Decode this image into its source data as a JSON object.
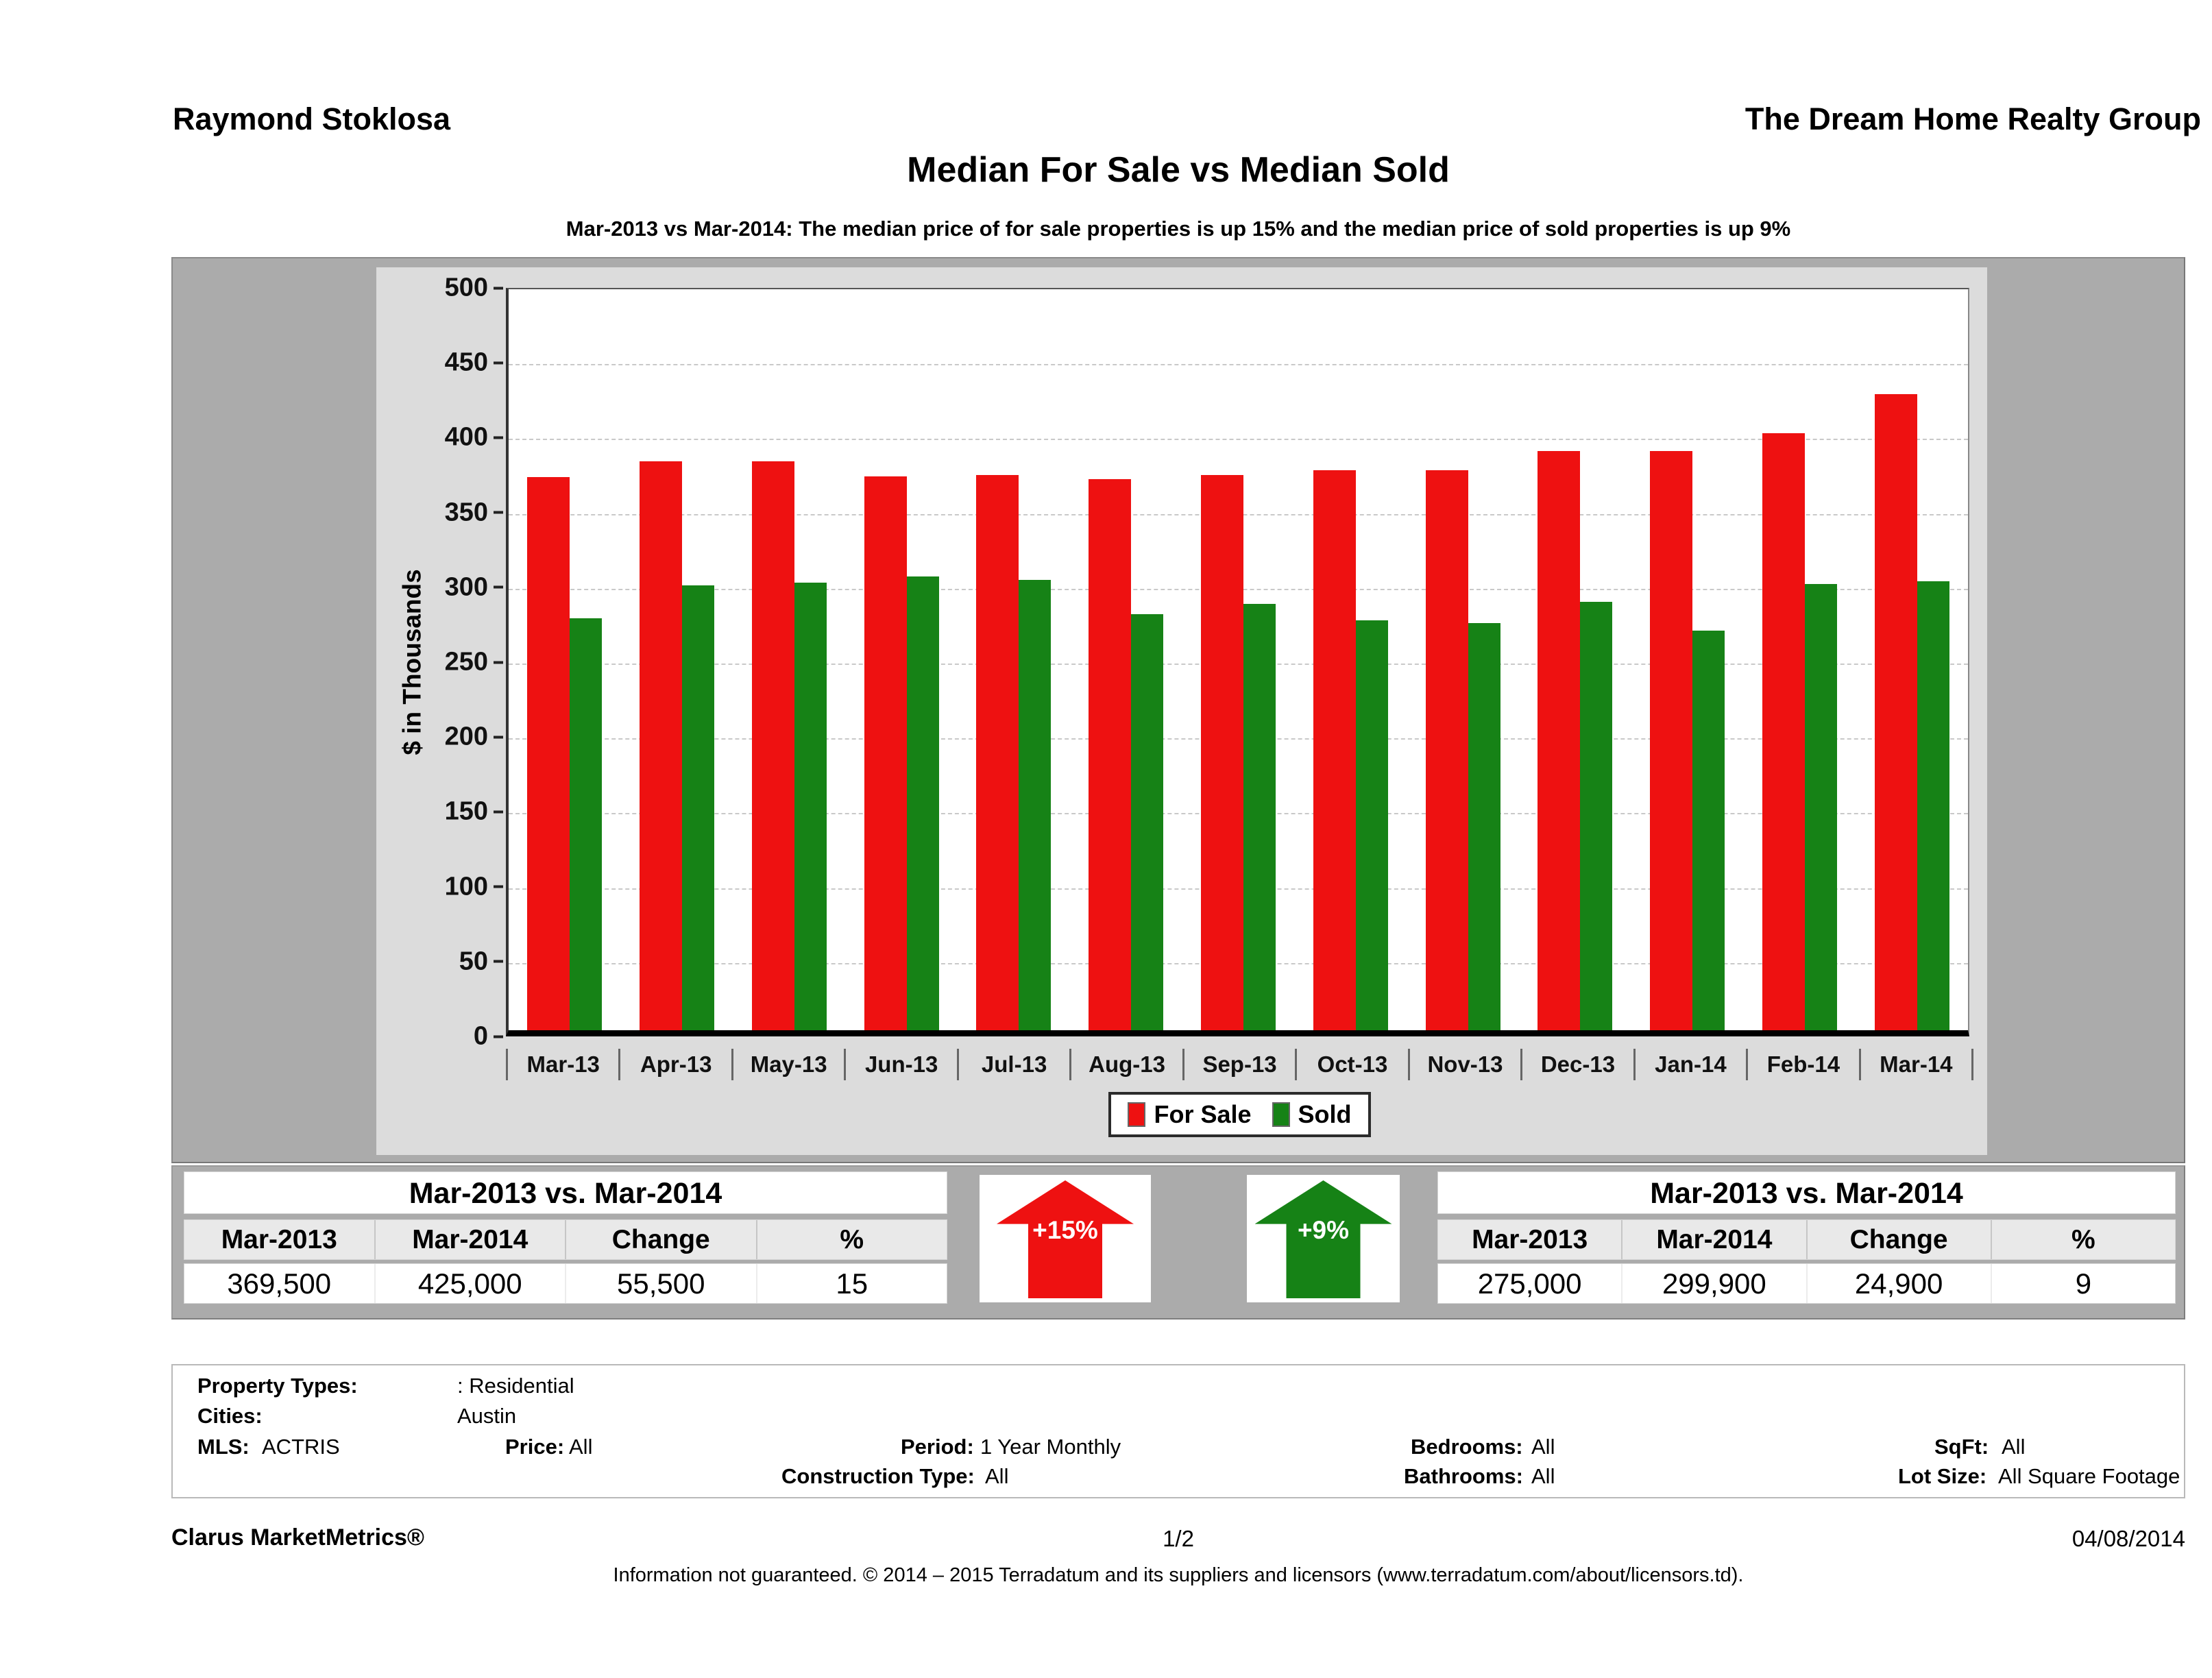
{
  "header": {
    "agent": "Raymond Stoklosa",
    "company": "The Dream Home Realty Group"
  },
  "title": "Median For Sale vs Median Sold",
  "subtitle": "Mar-2013 vs Mar-2014: The median price of for sale properties is up 15% and the median price of sold properties is up 9%",
  "chart_data": {
    "type": "bar",
    "title": "Median For Sale vs Median Sold",
    "categories": [
      "Mar-13",
      "Apr-13",
      "May-13",
      "Jun-13",
      "Jul-13",
      "Aug-13",
      "Sep-13",
      "Oct-13",
      "Nov-13",
      "Dec-13",
      "Jan-14",
      "Feb-14",
      "Mar-14"
    ],
    "series": [
      {
        "name": "For Sale",
        "color": "#ee1111",
        "values": [
          369.5,
          380,
          380,
          370,
          371,
          368,
          371,
          374,
          374,
          387,
          387,
          399,
          425
        ]
      },
      {
        "name": "Sold",
        "color": "#168216",
        "values": [
          275,
          297,
          299,
          303,
          301,
          278,
          285,
          274,
          272,
          286,
          267,
          298,
          299.9
        ]
      }
    ],
    "xlabel": "",
    "ylabel": "$ in Thousands",
    "ylim": [
      0,
      500
    ],
    "ytick_step": 50,
    "grid": "horizontal-dashed",
    "legend_position": "bottom-center"
  },
  "for_sale_table": {
    "title": "Mar-2013 vs. Mar-2014",
    "headers": [
      "Mar-2013",
      "Mar-2014",
      "Change",
      "%"
    ],
    "row": [
      "369,500",
      "425,000",
      "55,500",
      "15"
    ]
  },
  "sold_table": {
    "title": "Mar-2013 vs. Mar-2014",
    "headers": [
      "Mar-2013",
      "Mar-2014",
      "Change",
      "%"
    ],
    "row": [
      "275,000",
      "299,900",
      "24,900",
      "9"
    ]
  },
  "arrows": [
    {
      "label": "+15%",
      "color": "#ee1111",
      "direction": "up"
    },
    {
      "label": "+9%",
      "color": "#168216",
      "direction": "up"
    }
  ],
  "filters": {
    "property_types_label": "Property Types:",
    "property_types_value": ": Residential",
    "cities_label": "Cities:",
    "cities_value": "Austin",
    "mls_label": "MLS:",
    "mls_value": "ACTRIS",
    "price_label": "Price:",
    "price_value": "All",
    "period_label": "Period:",
    "period_value": "1 Year Monthly",
    "construction_label": "Construction Type:",
    "construction_value": "All",
    "bedrooms_label": "Bedrooms:",
    "bedrooms_value": "All",
    "bathrooms_label": "Bathrooms:",
    "bathrooms_value": "All",
    "sqft_label": "SqFt:",
    "sqft_value": "All",
    "lot_size_label": "Lot Size:",
    "lot_size_value": "All Square Footage"
  },
  "footer": {
    "brand": "Clarus MarketMetrics®",
    "page": "1/2",
    "date": "04/08/2014",
    "disclaimer": "Information not guaranteed. © 2014 – 2015 Terradatum and its suppliers and licensors (www.terradatum.com/about/licensors.td)."
  }
}
